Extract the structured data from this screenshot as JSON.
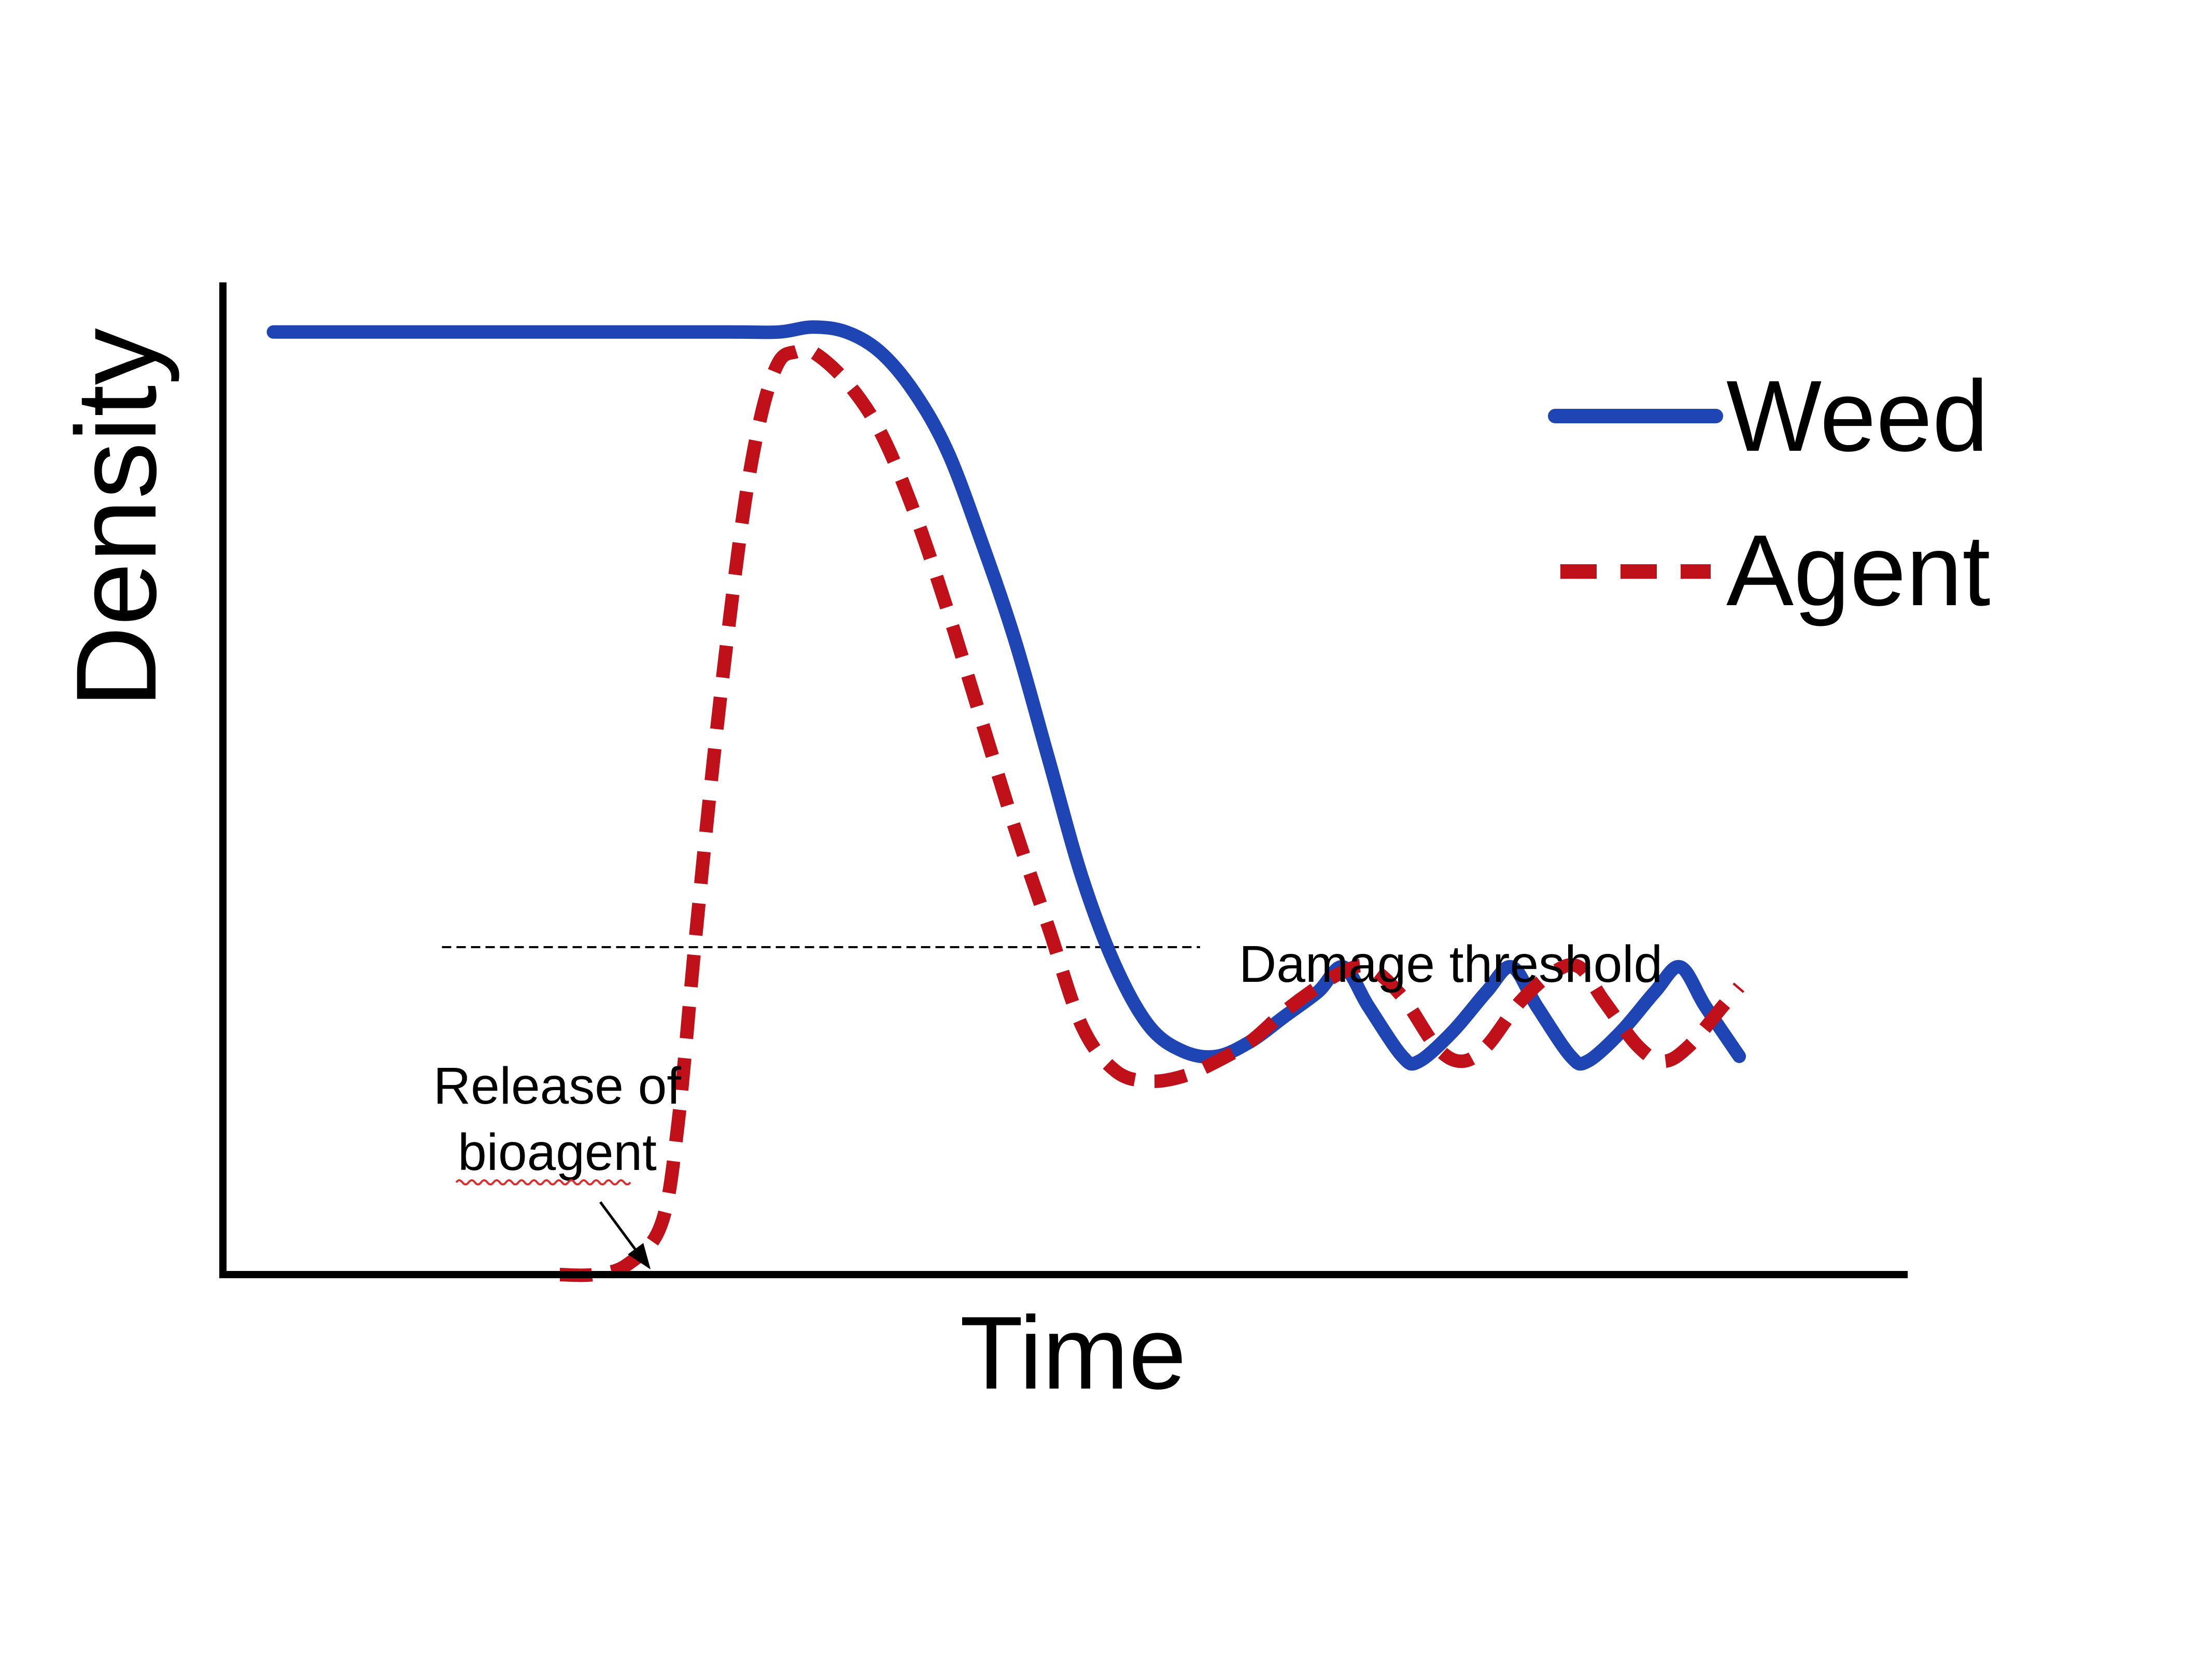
{
  "chart_data": {
    "type": "line",
    "title": "",
    "xlabel": "Time",
    "ylabel": "Density",
    "xlim": [
      0,
      100
    ],
    "ylim": [
      0,
      100
    ],
    "ticks": "none",
    "grid": false,
    "legend_position": "top-right",
    "series": [
      {
        "name": "Weed",
        "color": "#1f45b4",
        "style": "solid",
        "points": [
          [
            3,
            95
          ],
          [
            10,
            95
          ],
          [
            20,
            95
          ],
          [
            30,
            95
          ],
          [
            33,
            95
          ],
          [
            35,
            95.5
          ],
          [
            37,
            95
          ],
          [
            39,
            93
          ],
          [
            41,
            89
          ],
          [
            43,
            83
          ],
          [
            45,
            74
          ],
          [
            47,
            64
          ],
          [
            49,
            52
          ],
          [
            51,
            40
          ],
          [
            53,
            31
          ],
          [
            55,
            25
          ],
          [
            57,
            22.5
          ],
          [
            59,
            22
          ],
          [
            61,
            23.5
          ],
          [
            63,
            26
          ],
          [
            65,
            28.5
          ],
          [
            66.5,
            31
          ],
          [
            68,
            27
          ],
          [
            70,
            22
          ],
          [
            71,
            21.5
          ],
          [
            73,
            24.5
          ],
          [
            75,
            28.5
          ],
          [
            76.5,
            31
          ],
          [
            78,
            27
          ],
          [
            80,
            22
          ],
          [
            81,
            21.5
          ],
          [
            83,
            24.5
          ],
          [
            85,
            28.5
          ],
          [
            86.5,
            31
          ],
          [
            88,
            27
          ],
          [
            90,
            22
          ]
        ]
      },
      {
        "name": "Agent",
        "color": "#c0101a",
        "style": "dashed",
        "points": [
          [
            20,
            0
          ],
          [
            22,
            0
          ],
          [
            24,
            1
          ],
          [
            26,
            5
          ],
          [
            27,
            15
          ],
          [
            28,
            33
          ],
          [
            29,
            50
          ],
          [
            30,
            65
          ],
          [
            31,
            78
          ],
          [
            32,
            87
          ],
          [
            33,
            92
          ],
          [
            34,
            93
          ],
          [
            35,
            93
          ],
          [
            37,
            90
          ],
          [
            39,
            85
          ],
          [
            41,
            77
          ],
          [
            43,
            67
          ],
          [
            45,
            56
          ],
          [
            47,
            45
          ],
          [
            49,
            35
          ],
          [
            51,
            25
          ],
          [
            53,
            20.5
          ],
          [
            55,
            19.5
          ],
          [
            57,
            20
          ],
          [
            59,
            21.5
          ],
          [
            61,
            23.5
          ],
          [
            63,
            26.5
          ],
          [
            65,
            29
          ],
          [
            66.5,
            30.5
          ],
          [
            68,
            31
          ],
          [
            70,
            28
          ],
          [
            72,
            23
          ],
          [
            73.5,
            21.5
          ],
          [
            75,
            23
          ],
          [
            77,
            27.5
          ],
          [
            79,
            30.5
          ],
          [
            80.5,
            31
          ],
          [
            82,
            27.5
          ],
          [
            84,
            23
          ],
          [
            85.5,
            21.5
          ],
          [
            87,
            23
          ],
          [
            89,
            27
          ],
          [
            90,
            29
          ]
        ]
      }
    ],
    "threshold": {
      "label": "Damage threshold",
      "y": 33,
      "x_range": [
        13,
        58
      ]
    },
    "annotation": {
      "line1": "Release of",
      "line2": "bioagent",
      "points_to": [
        24,
        1
      ]
    },
    "axis_color": "#000000"
  }
}
